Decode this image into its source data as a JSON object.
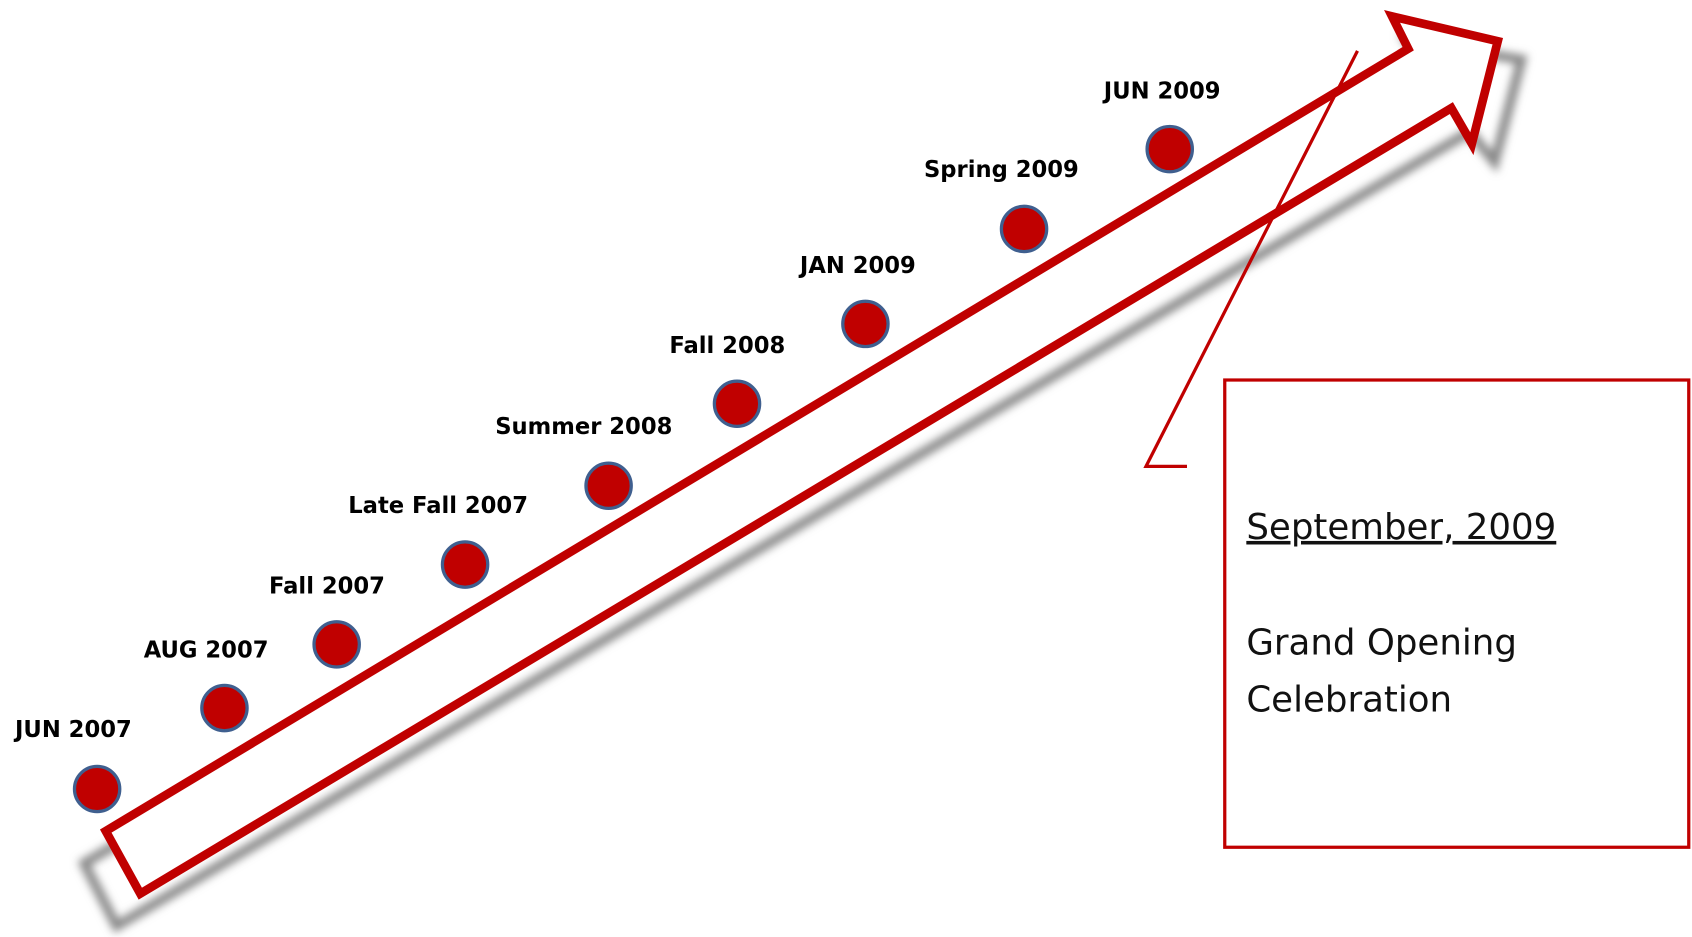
{
  "milestones": [
    "JUN 2007",
    "AUG 2007",
    "Fall 2007",
    "Late Fall 2007",
    "Summer 2008",
    "Fall 2008",
    "JAN 2009",
    "Spring 2009",
    "JUN 2009"
  ],
  "callout": {
    "date": "September, 2009",
    "lines": [
      "Grand Opening",
      "Celebration"
    ]
  }
}
